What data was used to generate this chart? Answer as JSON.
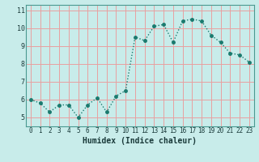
{
  "x": [
    0,
    1,
    2,
    3,
    4,
    5,
    6,
    7,
    8,
    9,
    10,
    11,
    12,
    13,
    14,
    15,
    16,
    17,
    18,
    19,
    20,
    21,
    22,
    23
  ],
  "y": [
    6.0,
    5.8,
    5.3,
    5.7,
    5.7,
    5.0,
    5.7,
    6.1,
    5.3,
    6.2,
    6.5,
    9.5,
    9.3,
    10.1,
    10.2,
    9.2,
    10.4,
    10.5,
    10.4,
    9.6,
    9.2,
    8.6,
    8.5,
    8.1
  ],
  "line_color": "#1a7a6e",
  "bg_color": "#c8ecea",
  "grid_color": "#e8a0a0",
  "xlabel": "Humidex (Indice chaleur)",
  "xlim": [
    -0.5,
    23.5
  ],
  "ylim": [
    4.5,
    11.3
  ],
  "yticks": [
    5,
    6,
    7,
    8,
    9,
    10,
    11
  ],
  "xticks": [
    0,
    1,
    2,
    3,
    4,
    5,
    6,
    7,
    8,
    9,
    10,
    11,
    12,
    13,
    14,
    15,
    16,
    17,
    18,
    19,
    20,
    21,
    22,
    23
  ],
  "xtick_labels": [
    "0",
    "1",
    "2",
    "3",
    "4",
    "5",
    "6",
    "7",
    "8",
    "9",
    "10",
    "11",
    "12",
    "13",
    "14",
    "15",
    "16",
    "17",
    "18",
    "19",
    "20",
    "21",
    "22",
    "23"
  ],
  "marker_size": 2.5,
  "line_width": 1.0,
  "tick_fontsize": 5.5,
  "xlabel_fontsize": 7.0
}
